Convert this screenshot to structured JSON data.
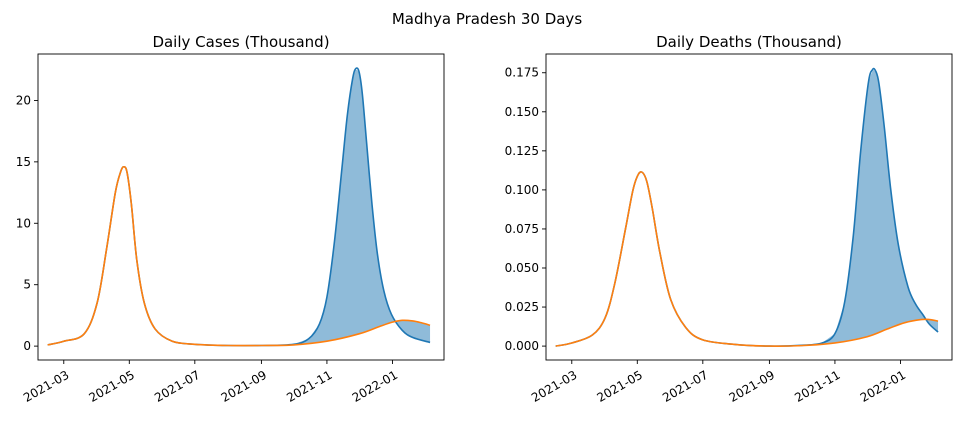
{
  "figure": {
    "suptitle": "Madhya Pradesh 30 Days"
  },
  "chart_data": [
    {
      "type": "line",
      "title": "Daily Cases (Thousand)",
      "xlabel": "",
      "ylabel": "",
      "x_type": "date",
      "xlim": [
        "2021-02-05",
        "2022-02-18"
      ],
      "ylim": [
        -1.13,
        23.78
      ],
      "xticks": [
        "2021-03-01",
        "2021-05-01",
        "2021-07-01",
        "2021-09-01",
        "2021-11-01",
        "2022-01-01"
      ],
      "xtick_labels": [
        "2021-03",
        "2021-05",
        "2021-07",
        "2021-09",
        "2021-11",
        "2022-01"
      ],
      "yticks": [
        0,
        5,
        10,
        15,
        20
      ],
      "ytick_labels": [
        "0",
        "5",
        "10",
        "15",
        "20"
      ],
      "fill_between": {
        "series": [
          0,
          1
        ],
        "color": "#1f77b4",
        "alpha": 0.5
      },
      "series": [
        {
          "color": "#1f77b4",
          "x": [
            "2021-02-14",
            "2021-03-01",
            "2021-03-20",
            "2021-04-01",
            "2021-04-10",
            "2021-04-18",
            "2021-04-23",
            "2021-04-26",
            "2021-04-29",
            "2021-05-03",
            "2021-05-08",
            "2021-05-15",
            "2021-05-25",
            "2021-06-10",
            "2021-07-01",
            "2021-08-01",
            "2021-09-01",
            "2021-10-01",
            "2021-10-15",
            "2021-10-25",
            "2021-11-01",
            "2021-11-08",
            "2021-11-15",
            "2021-11-20",
            "2021-11-25",
            "2021-11-28",
            "2021-12-01",
            "2021-12-04",
            "2021-12-08",
            "2021-12-13",
            "2021-12-18",
            "2021-12-24",
            "2021-12-31",
            "2022-01-10",
            "2022-01-20",
            "2022-02-05"
          ],
          "y": [
            0.1,
            0.4,
            1.0,
            3.5,
            8.0,
            12.5,
            14.2,
            14.6,
            14.1,
            11.5,
            7.0,
            3.5,
            1.4,
            0.4,
            0.15,
            0.05,
            0.05,
            0.15,
            0.6,
            1.8,
            4.0,
            8.5,
            14.5,
            18.8,
            21.8,
            22.6,
            22.3,
            20.5,
            16.5,
            11.5,
            7.5,
            4.5,
            2.6,
            1.3,
            0.7,
            0.3
          ]
        },
        {
          "color": "#ff7f0e",
          "x": [
            "2021-02-14",
            "2021-03-01",
            "2021-03-20",
            "2021-04-01",
            "2021-04-10",
            "2021-04-18",
            "2021-04-23",
            "2021-04-26",
            "2021-04-29",
            "2021-05-03",
            "2021-05-08",
            "2021-05-15",
            "2021-05-25",
            "2021-06-10",
            "2021-07-01",
            "2021-08-01",
            "2021-09-01",
            "2021-10-01",
            "2021-11-01",
            "2021-12-01",
            "2021-12-20",
            "2022-01-01",
            "2022-01-10",
            "2022-01-20",
            "2022-01-28",
            "2022-02-05"
          ],
          "y": [
            0.1,
            0.4,
            1.0,
            3.5,
            8.0,
            12.5,
            14.2,
            14.6,
            14.1,
            11.5,
            7.0,
            3.5,
            1.4,
            0.4,
            0.15,
            0.05,
            0.05,
            0.1,
            0.4,
            1.0,
            1.6,
            1.95,
            2.1,
            2.05,
            1.9,
            1.7
          ]
        }
      ]
    },
    {
      "type": "line",
      "title": "Daily Deaths (Thousand)",
      "xlabel": "",
      "ylabel": "",
      "x_type": "date",
      "xlim": [
        "2021-02-05",
        "2022-02-18"
      ],
      "ylim": [
        -0.0089,
        0.187
      ],
      "xticks": [
        "2021-03-01",
        "2021-05-01",
        "2021-07-01",
        "2021-09-01",
        "2021-11-01",
        "2022-01-01"
      ],
      "xtick_labels": [
        "2021-03",
        "2021-05",
        "2021-07",
        "2021-09",
        "2021-11",
        "2022-01"
      ],
      "yticks": [
        0.0,
        0.025,
        0.05,
        0.075,
        0.1,
        0.125,
        0.15,
        0.175
      ],
      "ytick_labels": [
        "0.000",
        "0.025",
        "0.050",
        "0.075",
        "0.100",
        "0.125",
        "0.150",
        "0.175"
      ],
      "fill_between": {
        "series": [
          0,
          1
        ],
        "color": "#1f77b4",
        "alpha": 0.5
      },
      "series": [
        {
          "color": "#1f77b4",
          "x": [
            "2021-02-14",
            "2021-03-01",
            "2021-03-20",
            "2021-04-01",
            "2021-04-10",
            "2021-04-20",
            "2021-04-27",
            "2021-05-02",
            "2021-05-06",
            "2021-05-10",
            "2021-05-15",
            "2021-05-22",
            "2021-06-01",
            "2021-06-15",
            "2021-07-01",
            "2021-08-01",
            "2021-09-01",
            "2021-10-01",
            "2021-10-20",
            "2021-11-01",
            "2021-11-10",
            "2021-11-18",
            "2021-11-25",
            "2021-12-02",
            "2021-12-06",
            "2021-12-09",
            "2021-12-12",
            "2021-12-17",
            "2021-12-23",
            "2021-12-30",
            "2022-01-08",
            "2022-01-15",
            "2022-01-22",
            "2022-01-28",
            "2022-02-05"
          ],
          "y": [
            0.0,
            0.002,
            0.007,
            0.018,
            0.04,
            0.075,
            0.1,
            0.11,
            0.111,
            0.105,
            0.088,
            0.06,
            0.03,
            0.012,
            0.004,
            0.001,
            0.0,
            0.0005,
            0.002,
            0.008,
            0.028,
            0.07,
            0.125,
            0.168,
            0.177,
            0.176,
            0.168,
            0.14,
            0.1,
            0.065,
            0.038,
            0.027,
            0.02,
            0.014,
            0.009
          ]
        },
        {
          "color": "#ff7f0e",
          "x": [
            "2021-02-14",
            "2021-03-01",
            "2021-03-20",
            "2021-04-01",
            "2021-04-10",
            "2021-04-20",
            "2021-04-27",
            "2021-05-02",
            "2021-05-06",
            "2021-05-10",
            "2021-05-15",
            "2021-05-22",
            "2021-06-01",
            "2021-06-15",
            "2021-07-01",
            "2021-08-01",
            "2021-09-01",
            "2021-10-01",
            "2021-11-01",
            "2021-12-01",
            "2021-12-20",
            "2022-01-05",
            "2022-01-20",
            "2022-01-28",
            "2022-02-05"
          ],
          "y": [
            0.0,
            0.002,
            0.007,
            0.018,
            0.04,
            0.075,
            0.1,
            0.11,
            0.111,
            0.105,
            0.088,
            0.06,
            0.03,
            0.012,
            0.004,
            0.001,
            0.0,
            0.0003,
            0.002,
            0.006,
            0.011,
            0.015,
            0.017,
            0.017,
            0.016
          ]
        }
      ]
    }
  ]
}
